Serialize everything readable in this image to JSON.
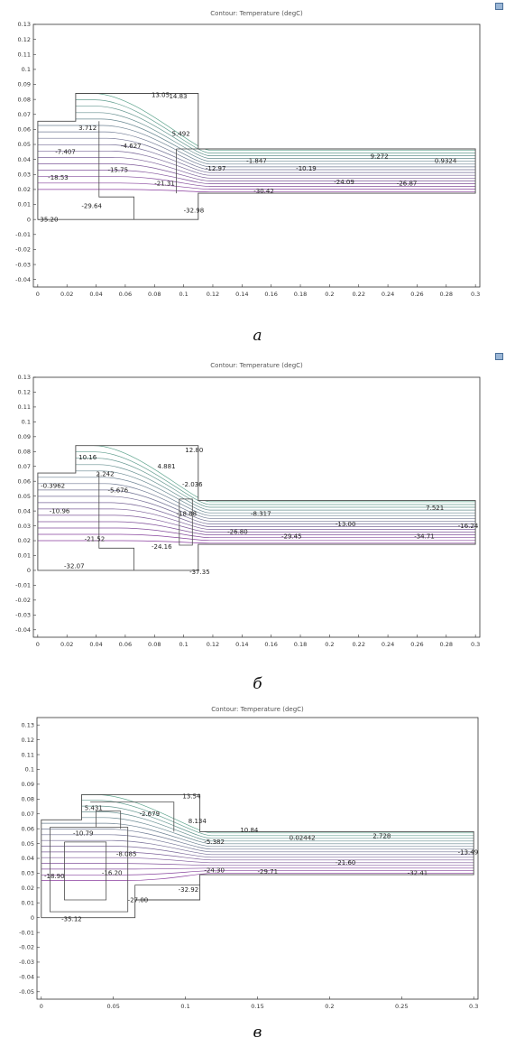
{
  "chart_data": [
    {
      "type": "contour",
      "title": "Contour: Temperature (degC)",
      "xlim": [
        -0.003,
        0.303
      ],
      "ylim": [
        -0.045,
        0.13
      ],
      "x_ticks": [
        "0",
        "0.02",
        "0.04",
        "0.06",
        "0.08",
        "0.1",
        "0.12",
        "0.14",
        "0.16",
        "0.18",
        "0.2",
        "0.22",
        "0.24",
        "0.26",
        "0.28",
        "0.3"
      ],
      "y_ticks": [
        "0.13",
        "0.12",
        "0.11",
        "0.1",
        "0.09",
        "0.08",
        "0.07",
        "0.06",
        "0.05",
        "0.04",
        "0.03",
        "0.02",
        "0.01",
        "0",
        "-0.01",
        "-0.02",
        "-0.03",
        "-0.04"
      ],
      "contour_labels": [
        {
          "text": "13.05",
          "x": 0.078,
          "y": 0.083
        },
        {
          "text": "14.83",
          "x": 0.09,
          "y": 0.082
        },
        {
          "text": "3.712",
          "x": 0.028,
          "y": 0.061
        },
        {
          "text": "5.492",
          "x": 0.092,
          "y": 0.057
        },
        {
          "text": "-7.407",
          "x": 0.012,
          "y": 0.045
        },
        {
          "text": "-4.627",
          "x": 0.057,
          "y": 0.049
        },
        {
          "text": "9.272",
          "x": 0.228,
          "y": 0.042
        },
        {
          "text": "0.9324",
          "x": 0.272,
          "y": 0.039
        },
        {
          "text": "-1.847",
          "x": 0.143,
          "y": 0.039
        },
        {
          "text": "-10.19",
          "x": 0.177,
          "y": 0.034
        },
        {
          "text": "-18.53",
          "x": 0.007,
          "y": 0.028
        },
        {
          "text": "-15.75",
          "x": 0.048,
          "y": 0.033
        },
        {
          "text": "-12.97",
          "x": 0.115,
          "y": 0.034
        },
        {
          "text": "-21.31",
          "x": 0.08,
          "y": 0.024
        },
        {
          "text": "-24.09",
          "x": 0.203,
          "y": 0.025
        },
        {
          "text": "-26.87",
          "x": 0.246,
          "y": 0.024
        },
        {
          "text": "-30.42",
          "x": 0.148,
          "y": 0.019
        },
        {
          "text": "-29.64",
          "x": 0.03,
          "y": 0.009
        },
        {
          "text": "-32.98",
          "x": 0.1,
          "y": 0.006
        },
        {
          "text": "-35.20",
          "x": 0.0,
          "y": 0.0
        }
      ]
    },
    {
      "type": "contour",
      "title": "Contour: Temperature (degC)",
      "xlim": [
        -0.003,
        0.303
      ],
      "ylim": [
        -0.045,
        0.13
      ],
      "x_ticks": [
        "0",
        "0.02",
        "0.04",
        "0.06",
        "0.08",
        "0.1",
        "0.12",
        "0.14",
        "0.16",
        "0.18",
        "0.2",
        "0.22",
        "0.24",
        "0.26",
        "0.28",
        "0.3"
      ],
      "y_ticks": [
        "0.13",
        "0.12",
        "0.11",
        "0.1",
        "0.09",
        "0.08",
        "0.07",
        "0.06",
        "0.05",
        "0.04",
        "0.03",
        "0.02",
        "0.01",
        "0",
        "-0.01",
        "-0.02",
        "-0.03",
        "-0.04"
      ],
      "contour_labels": [
        {
          "text": "10.16",
          "x": 0.028,
          "y": 0.076
        },
        {
          "text": "12.80",
          "x": 0.101,
          "y": 0.081
        },
        {
          "text": "4.881",
          "x": 0.082,
          "y": 0.07
        },
        {
          "text": "2.242",
          "x": 0.04,
          "y": 0.065
        },
        {
          "text": "-0.3962",
          "x": 0.002,
          "y": 0.057
        },
        {
          "text": "-5.676",
          "x": 0.048,
          "y": 0.054
        },
        {
          "text": "-2.036",
          "x": 0.099,
          "y": 0.058
        },
        {
          "text": "7.521",
          "x": 0.266,
          "y": 0.042
        },
        {
          "text": "-8.317",
          "x": 0.146,
          "y": 0.038
        },
        {
          "text": "-16.24",
          "x": 0.288,
          "y": 0.03
        },
        {
          "text": "-13.00",
          "x": 0.204,
          "y": 0.031
        },
        {
          "text": "-10.96",
          "x": 0.008,
          "y": 0.04
        },
        {
          "text": "-18.88",
          "x": 0.095,
          "y": 0.038
        },
        {
          "text": "-21.52",
          "x": 0.032,
          "y": 0.021
        },
        {
          "text": "-26.80",
          "x": 0.13,
          "y": 0.026
        },
        {
          "text": "-29.45",
          "x": 0.167,
          "y": 0.023
        },
        {
          "text": "-24.16",
          "x": 0.078,
          "y": 0.016
        },
        {
          "text": "-34.71",
          "x": 0.258,
          "y": 0.023
        },
        {
          "text": "-32.07",
          "x": 0.018,
          "y": 0.003
        },
        {
          "text": "-37.35",
          "x": 0.104,
          "y": -0.001
        }
      ]
    },
    {
      "type": "contour",
      "title": "Contour: Temperature (degC)",
      "xlim": [
        -0.003,
        0.303
      ],
      "ylim": [
        -0.055,
        0.135
      ],
      "x_ticks": [
        "0",
        "0.05",
        "0.1",
        "0.15",
        "0.2",
        "0.25",
        "0.3"
      ],
      "y_ticks": [
        "0.13",
        "0.12",
        "0.11",
        "0.1",
        "0.09",
        "0.08",
        "0.07",
        "0.06",
        "0.05",
        "0.04",
        "0.03",
        "0.02",
        "0.01",
        "0",
        "-0.01",
        "-0.02",
        "-0.03",
        "-0.04",
        "-0.05"
      ],
      "contour_labels": [
        {
          "text": "13.54",
          "x": 0.098,
          "y": 0.082
        },
        {
          "text": "5.431",
          "x": 0.03,
          "y": 0.074
        },
        {
          "text": "-2.679",
          "x": 0.068,
          "y": 0.07
        },
        {
          "text": "8.134",
          "x": 0.102,
          "y": 0.065
        },
        {
          "text": "10.84",
          "x": 0.138,
          "y": 0.059
        },
        {
          "text": "-10.79",
          "x": 0.022,
          "y": 0.057
        },
        {
          "text": "-5.382",
          "x": 0.113,
          "y": 0.051
        },
        {
          "text": "0.02442",
          "x": 0.172,
          "y": 0.054
        },
        {
          "text": "2.728",
          "x": 0.23,
          "y": 0.055
        },
        {
          "text": "-13.49",
          "x": 0.289,
          "y": 0.044
        },
        {
          "text": "-8.085",
          "x": 0.052,
          "y": 0.043
        },
        {
          "text": "-16.20",
          "x": 0.042,
          "y": 0.03
        },
        {
          "text": "-18.90",
          "x": 0.002,
          "y": 0.028
        },
        {
          "text": "-24.30",
          "x": 0.113,
          "y": 0.032
        },
        {
          "text": "-29.71",
          "x": 0.15,
          "y": 0.031
        },
        {
          "text": "-21.60",
          "x": 0.204,
          "y": 0.037
        },
        {
          "text": "-32.41",
          "x": 0.254,
          "y": 0.03
        },
        {
          "text": "-32.92",
          "x": 0.095,
          "y": 0.019
        },
        {
          "text": "-27.00",
          "x": 0.06,
          "y": 0.012
        },
        {
          "text": "-35.12",
          "x": 0.014,
          "y": -0.001
        }
      ]
    }
  ],
  "captions": [
    "а",
    "б",
    "в"
  ],
  "colors": {
    "warm": "#5fa58e",
    "cold": "#8a3d9e",
    "outline": "#4d4d4d",
    "frame": "#333333"
  }
}
